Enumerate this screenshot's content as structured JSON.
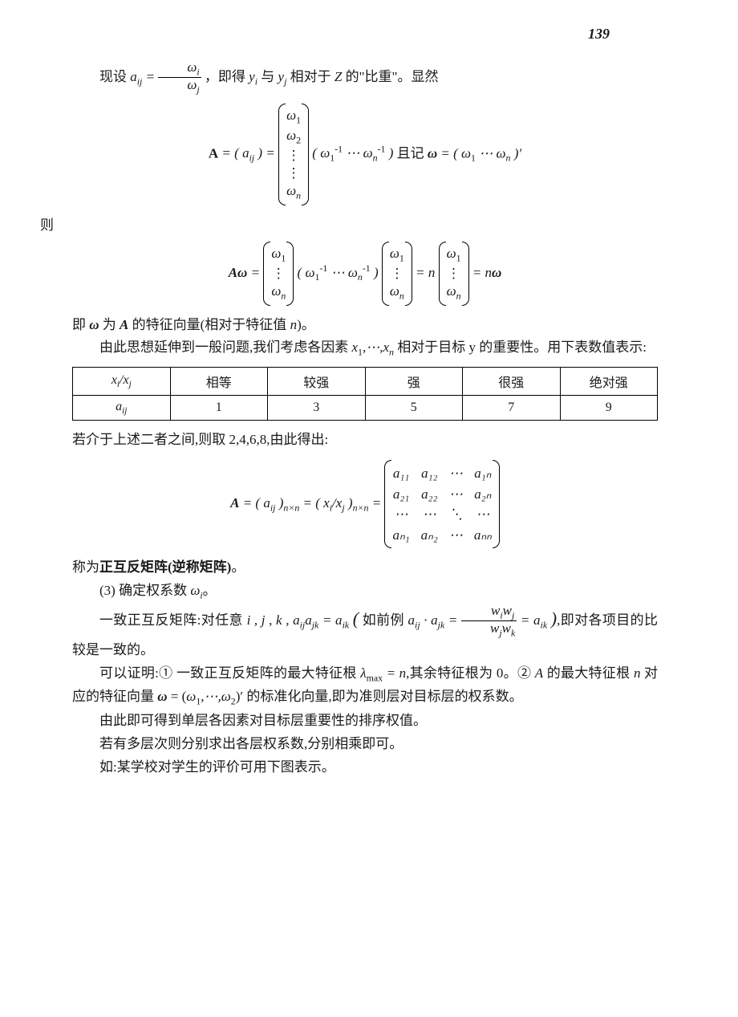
{
  "page_number": "139",
  "para1_prefix": "现设 ",
  "para1_mid": "，即得 ",
  "para1_mid2": " 与 ",
  "para1_mid3": " 相对于 ",
  "para1_mid4": " 的\"比重\"。显然",
  "aij": "a",
  "frac_num": "ω",
  "frac_den": "ω",
  "yi": "y",
  "yj": "y",
  "Z": "Z",
  "ze": "则",
  "formula1_label": "A  =  ( a",
  "formula1_eq": " )  = ",
  "formula1_row": "(  ω",
  "formula1_dots": "   ⋯   ω",
  "formula1_close": " )",
  "formula1_qie": "     且记 ",
  "formula1_omega": "ω  =  ( ω",
  "formula1_end": " )′",
  "formula2_lhs": "Aω  =  ",
  "formula2_eq": " =  n",
  "formula2_end": " =   nω",
  "para2": "即 ω 为 A 的特征向量(相对于特征值 n)。",
  "para3_a": "由此思想延伸到一般问题,我们考虑各因素 ",
  "para3_b": " 相对于目标 y 的重要性。用下表数值表示:",
  "x1": "x",
  "xn": "x",
  "table": {
    "columns": [
      "xᵢ/xⱼ",
      "相等",
      "较强",
      "强",
      "很强",
      "绝对强"
    ],
    "row_label": "aᵢⱼ",
    "row": [
      "1",
      "3",
      "5",
      "7",
      "9"
    ]
  },
  "para4": "若介于上述二者之间,则取 2,4,6,8,由此得出:",
  "formula3_lhs": "A  =  ( a",
  "formula3_sub1": "ij",
  "formula3_nn": "n×n",
  "formula3_mid": "  =  ( x",
  "formula3_mid2": "/x",
  "formula3_eq": "  =  ",
  "matrix_a": {
    "r1": [
      "a₁₁",
      "a₁₂",
      "⋯",
      "a₁ₙ"
    ],
    "r2": [
      "a₂₁",
      "a₂₂",
      "⋯",
      "a₂ₙ"
    ],
    "r3": [
      "⋯",
      "⋯",
      "⋱",
      "⋯"
    ],
    "r4": [
      "aₙ₁",
      "aₙ₂",
      "⋯",
      "aₙₙ"
    ]
  },
  "para5": "称为正互反矩阵(逆称矩阵)。",
  "para6": "(3) 确定权系数 ωᵢ。",
  "para7_a": "一致正互反矩阵:对任意 ",
  "para7_b": " i , j , k , a",
  "para7_c": "a",
  "para7_d": " = a",
  "para7_e": "( 如前例 ",
  "para7_f": " · a",
  "para7_g": " = ",
  "para7_h": " = a",
  "para7_i": " )",
  "para7_j": ",即对各项目的比较是一致的。",
  "frac2_num_a": "w",
  "frac2_num_b": "w",
  "frac2_den_a": "w",
  "frac2_den_b": "w",
  "para8_a": "可以证明:① 一致正互反矩阵的最大特征根 ",
  "para8_b": "λ",
  "para8_c": " = n",
  "para8_d": ",其余特征根为 0。② A 的最大特征根 n 对应的特征向量 ω = (ω₁,⋯,ω₂)′ 的标准化向量,即为准则层对目标层的权系数。",
  "para9": "由此即可得到单层各因素对目标层重要性的排序权值。",
  "para10": "若有多层次则分别求出各层权系数,分别相乘即可。",
  "para11": "如:某学校对学生的评价可用下图表示。"
}
